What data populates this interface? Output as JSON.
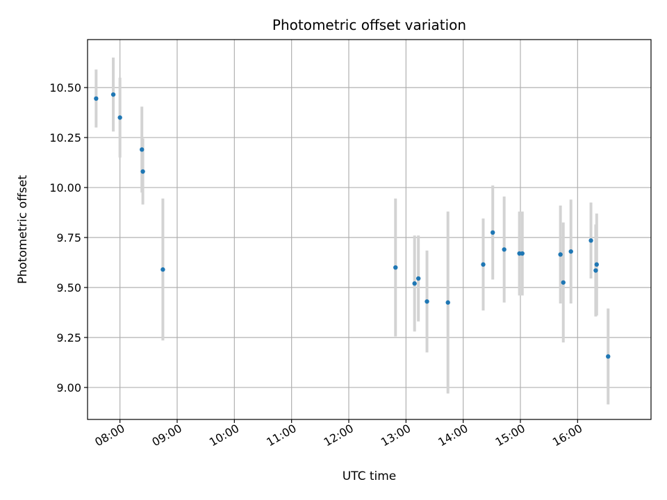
{
  "chart_data": {
    "type": "scatter",
    "title": "Photometric offset variation",
    "xlabel": "UTC time",
    "ylabel": "Photometric offset",
    "x_ticks": [
      "08:00",
      "09:00",
      "10:00",
      "11:00",
      "12:00",
      "13:00",
      "14:00",
      "15:00",
      "16:00"
    ],
    "y_ticks": [
      "9.00",
      "9.25",
      "9.50",
      "9.75",
      "10.00",
      "10.25",
      "10.50"
    ],
    "xlim": [
      "07:26",
      "17:17"
    ],
    "ylim": [
      8.84,
      10.74
    ],
    "grid": true,
    "marker_color": "#1f77b4",
    "errorbar_color": "#d3d3d3",
    "points": [
      {
        "x": "07:35",
        "y": 10.445,
        "err": 0.145
      },
      {
        "x": "07:53",
        "y": 10.465,
        "err": 0.185
      },
      {
        "x": "08:00",
        "y": 10.35,
        "err": 0.2
      },
      {
        "x": "08:23",
        "y": 10.19,
        "err": 0.215
      },
      {
        "x": "08:24",
        "y": 10.08,
        "err": 0.165
      },
      {
        "x": "08:45",
        "y": 9.59,
        "err": 0.355
      },
      {
        "x": "12:49",
        "y": 9.6,
        "err": 0.345
      },
      {
        "x": "13:09",
        "y": 9.52,
        "err": 0.24
      },
      {
        "x": "13:13",
        "y": 9.545,
        "err": 0.215
      },
      {
        "x": "13:22",
        "y": 9.43,
        "err": 0.255
      },
      {
        "x": "13:44",
        "y": 9.425,
        "err": 0.455
      },
      {
        "x": "14:21",
        "y": 9.615,
        "err": 0.23
      },
      {
        "x": "14:31",
        "y": 9.775,
        "err": 0.235
      },
      {
        "x": "14:43",
        "y": 9.69,
        "err": 0.265
      },
      {
        "x": "14:59",
        "y": 9.67,
        "err": 0.21
      },
      {
        "x": "15:02",
        "y": 9.67,
        "err": 0.21
      },
      {
        "x": "15:42",
        "y": 9.665,
        "err": 0.245
      },
      {
        "x": "15:45",
        "y": 9.525,
        "err": 0.3
      },
      {
        "x": "15:53",
        "y": 9.68,
        "err": 0.26
      },
      {
        "x": "16:14",
        "y": 9.735,
        "err": 0.19
      },
      {
        "x": "16:19",
        "y": 9.585,
        "err": 0.23
      },
      {
        "x": "16:20",
        "y": 9.615,
        "err": 0.255
      },
      {
        "x": "16:32",
        "y": 9.155,
        "err": 0.24
      }
    ]
  }
}
